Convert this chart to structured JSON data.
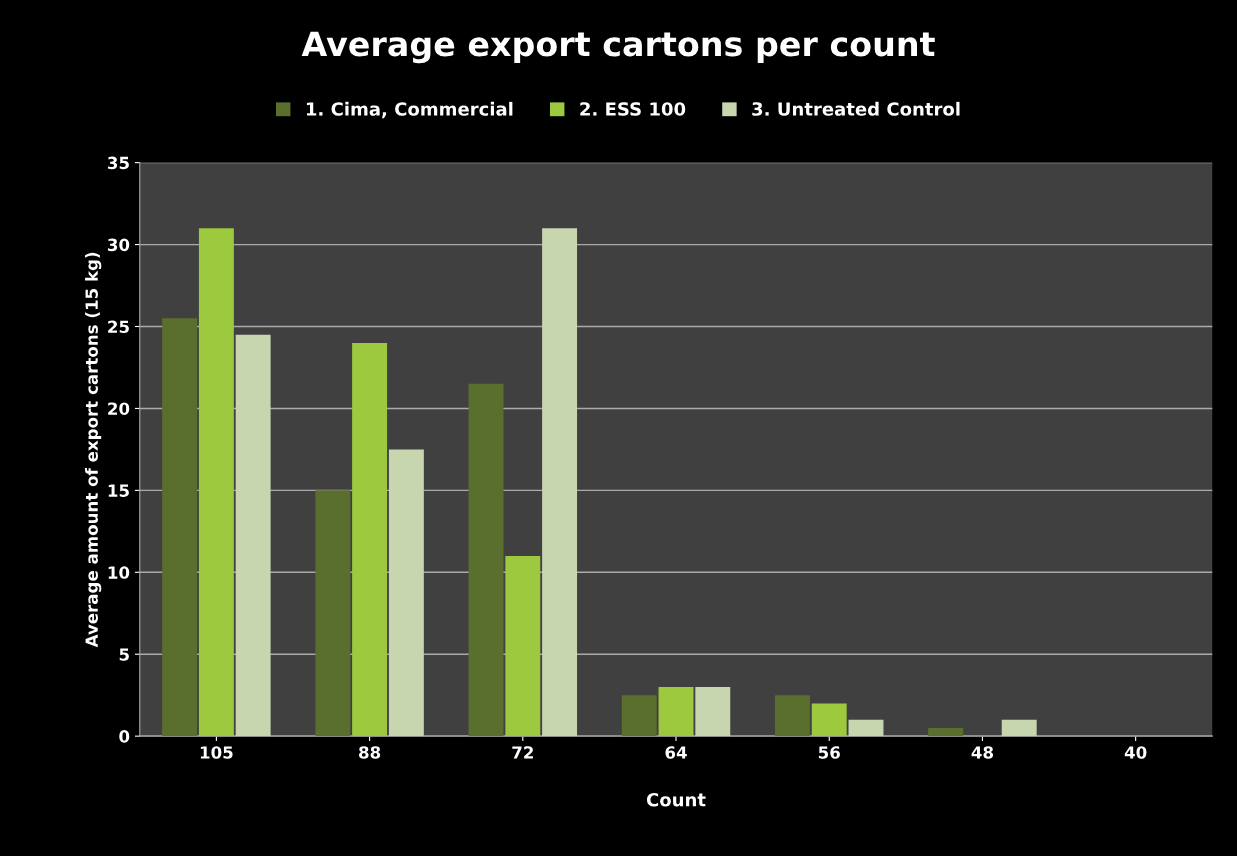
{
  "chart_data": {
    "type": "bar",
    "title": "Average export cartons per count",
    "xlabel": "Count",
    "ylabel": "Average amount of export cartons (15 kg)",
    "categories": [
      "105",
      "88",
      "72",
      "64",
      "56",
      "48",
      "40"
    ],
    "series": [
      {
        "name": "1. Cima, Commercial",
        "color": "#5a6e2e",
        "values": [
          25.5,
          15,
          21.5,
          2.5,
          2.5,
          0.5,
          0
        ]
      },
      {
        "name": "2. ESS 100",
        "color": "#9dc93e",
        "values": [
          31,
          24,
          11,
          3,
          2,
          0,
          0
        ]
      },
      {
        "name": "3. Untreated Control",
        "color": "#c8d6b0",
        "values": [
          24.5,
          17.5,
          31,
          3,
          1,
          1,
          0
        ]
      }
    ],
    "ylim": [
      0,
      35
    ],
    "yticks": [
      0,
      5,
      10,
      15,
      20,
      25,
      30,
      35
    ],
    "grid": "y",
    "legend": "top"
  }
}
